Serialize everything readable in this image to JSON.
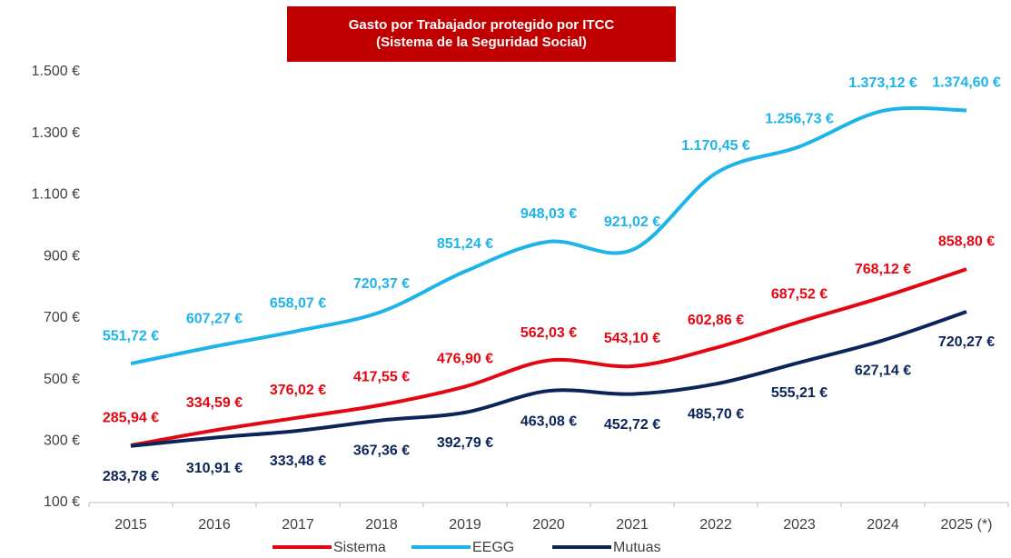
{
  "chart_data": {
    "type": "line",
    "title": "Gasto por Trabajador protegido por ITCC",
    "subtitle": "(Sistema de la Seguridad Social)",
    "categories": [
      "2015",
      "2016",
      "2017",
      "2018",
      "2019",
      "2020",
      "2021",
      "2022",
      "2023",
      "2024",
      "2025 (*)"
    ],
    "series": [
      {
        "name": "Sistema",
        "color": "#e30613",
        "label_position": "above",
        "values": [
          285.94,
          334.59,
          376.02,
          417.55,
          476.9,
          562.03,
          543.1,
          602.86,
          687.52,
          768.12,
          858.8
        ],
        "value_labels": [
          "285,94 €",
          "334,59 €",
          "376,02 €",
          "417,55 €",
          "476,90 €",
          "562,03 €",
          "543,10 €",
          "602,86 €",
          "687,52 €",
          "768,12 €",
          "858,80 €"
        ]
      },
      {
        "name": "EEGG",
        "color": "#1eb4ea",
        "label_position": "above",
        "values": [
          551.72,
          607.27,
          658.07,
          720.37,
          851.24,
          948.03,
          921.02,
          1170.45,
          1256.73,
          1373.12,
          1374.6
        ],
        "value_labels": [
          "551,72 €",
          "607,27 €",
          "658,07 €",
          "720,37 €",
          "851,24 €",
          "948,03 €",
          "921,02 €",
          "1.170,45 €",
          "1.256,73 €",
          "1.373,12 €",
          "1.374,60 €"
        ]
      },
      {
        "name": "Mutuas",
        "color": "#0b2559",
        "label_position": "below",
        "values": [
          283.78,
          310.91,
          333.48,
          367.36,
          392.79,
          463.08,
          452.72,
          485.7,
          555.21,
          627.14,
          720.27
        ],
        "value_labels": [
          "283,78 €",
          "310,91 €",
          "333,48 €",
          "367,36 €",
          "392,79 €",
          "463,08 €",
          "452,72 €",
          "485,70 €",
          "555,21 €",
          "627,14 €",
          "720,27 €"
        ]
      }
    ],
    "ylim": [
      100,
      1500
    ],
    "yticks": [
      {
        "value": 100,
        "label": "100 €"
      },
      {
        "value": 300,
        "label": "300 €"
      },
      {
        "value": 500,
        "label": "500 €"
      },
      {
        "value": 700,
        "label": "700 €"
      },
      {
        "value": 900,
        "label": "900 €"
      },
      {
        "value": 1100,
        "label": "1.100 €"
      },
      {
        "value": 1300,
        "label": "1.300 €"
      },
      {
        "value": 1500,
        "label": "1.500 €"
      }
    ],
    "grid": false,
    "smooth": true,
    "legend": "bottom"
  }
}
